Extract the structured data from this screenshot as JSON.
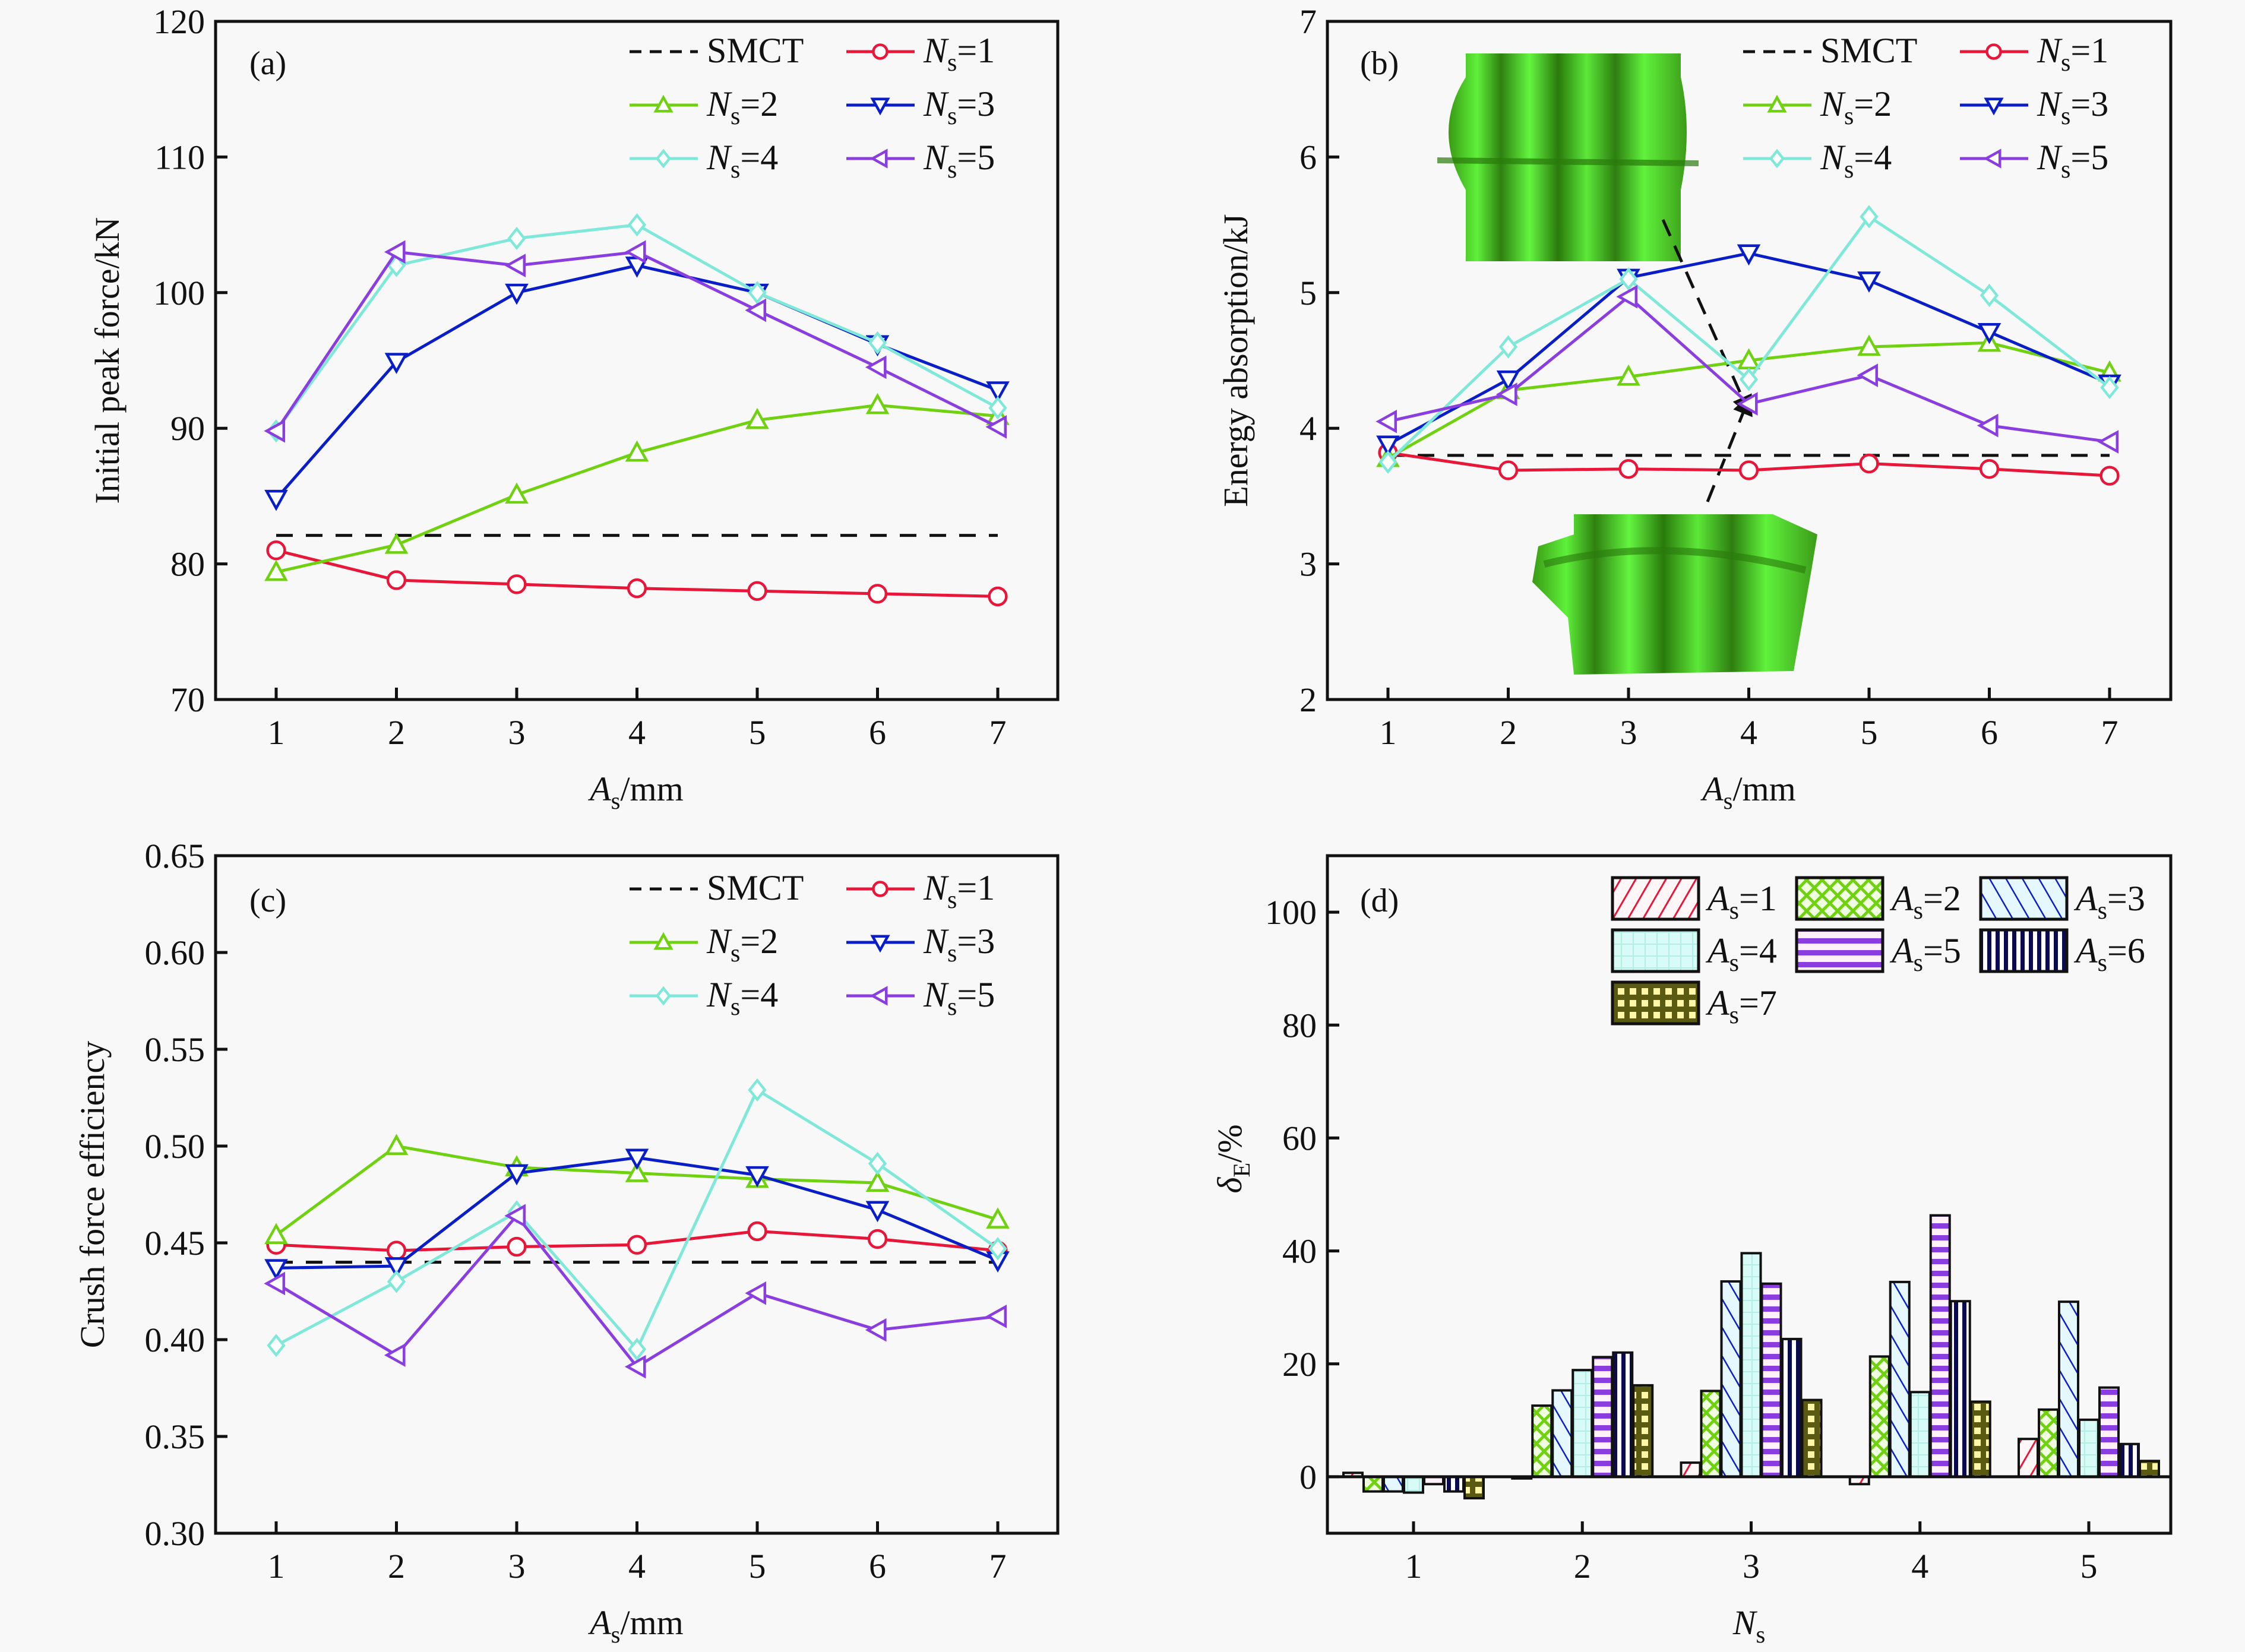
{
  "figure": {
    "panels": [
      "a",
      "b",
      "c",
      "d"
    ]
  },
  "series_styles": {
    "SMCT": {
      "color": "#111111",
      "marker": "none",
      "dash": true
    },
    "Ns=1": {
      "color": "#e8173a",
      "marker": "circle"
    },
    "Ns=2": {
      "color": "#6fd10f",
      "marker": "triangle-up"
    },
    "Ns=3": {
      "color": "#0a1ec8",
      "marker": "triangle-down"
    },
    "Ns=4": {
      "color": "#7fe8d8",
      "marker": "diamond"
    },
    "Ns=5": {
      "color": "#8a3ee0",
      "marker": "triangle-left"
    }
  },
  "bar_styles": [
    {
      "name": "As=1",
      "color": "#e8173a",
      "pattern": "diag-right"
    },
    {
      "name": "As=2",
      "color": "#6fd10f",
      "pattern": "crosshatch"
    },
    {
      "name": "As=3",
      "color": "#0a1ec8",
      "pattern": "diag-left"
    },
    {
      "name": "As=4",
      "color": "#aef0e6",
      "pattern": "grid-light"
    },
    {
      "name": "As=5",
      "color": "#8a3ee0",
      "pattern": "horizontal"
    },
    {
      "name": "As=6",
      "color": "#0a0a50",
      "pattern": "vertical"
    },
    {
      "name": "As=7",
      "color": "#5a5a12",
      "pattern": "dense-grid"
    }
  ],
  "chart_data": [
    {
      "panel": "(a)",
      "type": "line",
      "xlabel_main": "A",
      "xlabel_sub": "s",
      "xlabel_unit": "/mm",
      "ylabel": "Initial peak force/kN",
      "x": [
        1,
        2,
        3,
        4,
        5,
        6,
        7
      ],
      "xticks": [
        "1",
        "2",
        "3",
        "4",
        "5",
        "6",
        "7"
      ],
      "ylim": [
        70,
        120
      ],
      "yticks": [
        "70",
        "80",
        "90",
        "100",
        "110",
        "120"
      ],
      "legend_position": "top-right",
      "legend": [
        {
          "key": "SMCT",
          "main": "SMCT",
          "sub": "",
          "suffix": ""
        },
        {
          "key": "Ns=1",
          "main": "N",
          "sub": "s",
          "suffix": "=1"
        },
        {
          "key": "Ns=2",
          "main": "N",
          "sub": "s",
          "suffix": "=2"
        },
        {
          "key": "Ns=3",
          "main": "N",
          "sub": "s",
          "suffix": "=3"
        },
        {
          "key": "Ns=4",
          "main": "N",
          "sub": "s",
          "suffix": "=4"
        },
        {
          "key": "Ns=5",
          "main": "N",
          "sub": "s",
          "suffix": "=5"
        }
      ],
      "series": [
        {
          "name": "SMCT",
          "values": [
            82.1,
            82.1,
            82.1,
            82.1,
            82.1,
            82.1,
            82.1
          ]
        },
        {
          "name": "Ns=1",
          "values": [
            81.0,
            78.8,
            78.5,
            78.2,
            78.0,
            77.8,
            77.6
          ]
        },
        {
          "name": "Ns=2",
          "values": [
            79.4,
            81.4,
            85.1,
            88.2,
            90.6,
            91.7,
            90.9
          ]
        },
        {
          "name": "Ns=3",
          "values": [
            84.8,
            94.9,
            100.0,
            102.0,
            100.0,
            96.2,
            92.8
          ]
        },
        {
          "name": "Ns=4",
          "values": [
            89.8,
            102.0,
            104.0,
            105.0,
            100.0,
            96.3,
            91.5
          ]
        },
        {
          "name": "Ns=5",
          "values": [
            89.8,
            103.0,
            102.0,
            103.0,
            98.7,
            94.5,
            90.1
          ]
        }
      ]
    },
    {
      "panel": "(b)",
      "type": "line",
      "xlabel_main": "A",
      "xlabel_sub": "s",
      "xlabel_unit": "/mm",
      "ylabel": "Energy absorption/kJ",
      "x": [
        1,
        2,
        3,
        4,
        5,
        6,
        7
      ],
      "xticks": [
        "1",
        "2",
        "3",
        "4",
        "5",
        "6",
        "7"
      ],
      "ylim": [
        2,
        7
      ],
      "yticks": [
        "2",
        "3",
        "4",
        "5",
        "6",
        "7"
      ],
      "legend_position": "top-right",
      "annotations": [
        "deformed tube inset (top, N_s=3 A_s=4)",
        "deformed tube inset (bottom, N_s=5 A_s=4)"
      ],
      "legend": [
        {
          "key": "SMCT",
          "main": "SMCT",
          "sub": "",
          "suffix": ""
        },
        {
          "key": "Ns=1",
          "main": "N",
          "sub": "s",
          "suffix": "=1"
        },
        {
          "key": "Ns=2",
          "main": "N",
          "sub": "s",
          "suffix": "=2"
        },
        {
          "key": "Ns=3",
          "main": "N",
          "sub": "s",
          "suffix": "=3"
        },
        {
          "key": "Ns=4",
          "main": "N",
          "sub": "s",
          "suffix": "=4"
        },
        {
          "key": "Ns=5",
          "main": "N",
          "sub": "s",
          "suffix": "=5"
        }
      ],
      "series": [
        {
          "name": "SMCT",
          "values": [
            3.8,
            3.8,
            3.8,
            3.8,
            3.8,
            3.8,
            3.8
          ]
        },
        {
          "name": "Ns=1",
          "values": [
            3.82,
            3.69,
            3.7,
            3.69,
            3.74,
            3.7,
            3.65
          ]
        },
        {
          "name": "Ns=2",
          "values": [
            3.78,
            4.28,
            4.38,
            4.5,
            4.6,
            4.63,
            4.41
          ]
        },
        {
          "name": "Ns=3",
          "values": [
            3.88,
            4.36,
            5.11,
            5.29,
            5.09,
            4.71,
            4.33
          ]
        },
        {
          "name": "Ns=4",
          "values": [
            3.75,
            4.6,
            5.1,
            4.36,
            5.56,
            4.98,
            4.3
          ]
        },
        {
          "name": "Ns=5",
          "values": [
            4.05,
            4.25,
            4.97,
            4.18,
            4.39,
            4.02,
            3.9
          ]
        }
      ]
    },
    {
      "panel": "(c)",
      "type": "line",
      "xlabel_main": "A",
      "xlabel_sub": "s",
      "xlabel_unit": "/mm",
      "ylabel": "Crush force efficiency",
      "x": [
        1,
        2,
        3,
        4,
        5,
        6,
        7
      ],
      "xticks": [
        "1",
        "2",
        "3",
        "4",
        "5",
        "6",
        "7"
      ],
      "ylim": [
        0.3,
        0.65
      ],
      "yticks": [
        "0.30",
        "0.35",
        "0.40",
        "0.45",
        "0.50",
        "0.55",
        "0.60",
        "0.65"
      ],
      "legend_position": "top-right",
      "legend": [
        {
          "key": "SMCT",
          "main": "SMCT",
          "sub": "",
          "suffix": ""
        },
        {
          "key": "Ns=1",
          "main": "N",
          "sub": "s",
          "suffix": "=1"
        },
        {
          "key": "Ns=2",
          "main": "N",
          "sub": "s",
          "suffix": "=2"
        },
        {
          "key": "Ns=3",
          "main": "N",
          "sub": "s",
          "suffix": "=3"
        },
        {
          "key": "Ns=4",
          "main": "N",
          "sub": "s",
          "suffix": "=4"
        },
        {
          "key": "Ns=5",
          "main": "N",
          "sub": "s",
          "suffix": "=5"
        }
      ],
      "series": [
        {
          "name": "SMCT",
          "values": [
            0.44,
            0.44,
            0.44,
            0.44,
            0.44,
            0.44,
            0.44
          ]
        },
        {
          "name": "Ns=1",
          "values": [
            0.449,
            0.446,
            0.448,
            0.449,
            0.456,
            0.452,
            0.446
          ]
        },
        {
          "name": "Ns=2",
          "values": [
            0.454,
            0.5,
            0.489,
            0.486,
            0.483,
            0.481,
            0.462
          ]
        },
        {
          "name": "Ns=3",
          "values": [
            0.437,
            0.438,
            0.486,
            0.494,
            0.485,
            0.467,
            0.441
          ]
        },
        {
          "name": "Ns=4",
          "values": [
            0.397,
            0.43,
            0.466,
            0.395,
            0.529,
            0.491,
            0.447
          ]
        },
        {
          "name": "Ns=5",
          "values": [
            0.429,
            0.392,
            0.464,
            0.386,
            0.424,
            0.405,
            0.412
          ]
        }
      ]
    },
    {
      "panel": "(d)",
      "type": "bar",
      "xlabel_main": "N",
      "xlabel_sub": "s",
      "xlabel_unit": "",
      "ylabel_main": "δ",
      "ylabel_sub": "E",
      "ylabel_unit": "/%",
      "categories": [
        "1",
        "2",
        "3",
        "4",
        "5"
      ],
      "ylim": [
        -10,
        110
      ],
      "yticks": [
        "0",
        "20",
        "40",
        "60",
        "80",
        "100"
      ],
      "legend_position": "top-right",
      "legend": [
        {
          "main": "A",
          "sub": "s",
          "suffix": "=1"
        },
        {
          "main": "A",
          "sub": "s",
          "suffix": "=2"
        },
        {
          "main": "A",
          "sub": "s",
          "suffix": "=3"
        },
        {
          "main": "A",
          "sub": "s",
          "suffix": "=4"
        },
        {
          "main": "A",
          "sub": "s",
          "suffix": "=5"
        },
        {
          "main": "A",
          "sub": "s",
          "suffix": "=6"
        },
        {
          "main": "A",
          "sub": "s",
          "suffix": "=7"
        }
      ],
      "series": [
        {
          "name": "As=1",
          "values": [
            0.7,
            -0.3,
            2.5,
            -1.3,
            6.7
          ]
        },
        {
          "name": "As=2",
          "values": [
            -2.6,
            12.6,
            15.2,
            21.3,
            11.9
          ]
        },
        {
          "name": "As=3",
          "values": [
            -2.6,
            15.3,
            34.6,
            34.5,
            31.0
          ]
        },
        {
          "name": "As=4",
          "values": [
            -2.8,
            18.9,
            39.6,
            15.0,
            10.1
          ]
        },
        {
          "name": "As=5",
          "values": [
            -1.3,
            21.2,
            34.2,
            46.3,
            15.8
          ]
        },
        {
          "name": "As=6",
          "values": [
            -2.6,
            22.0,
            24.4,
            31.1,
            5.8
          ]
        },
        {
          "name": "As=7",
          "values": [
            -3.8,
            16.2,
            13.6,
            13.3,
            2.8
          ]
        }
      ]
    }
  ]
}
